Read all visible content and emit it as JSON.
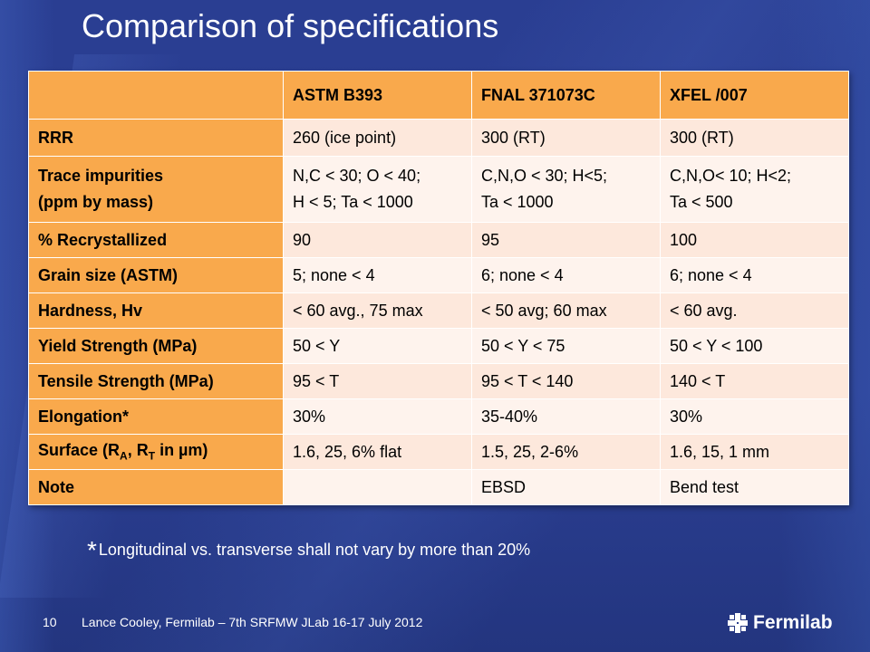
{
  "title": "Comparison of specifications",
  "table": {
    "headers": [
      "",
      "ASTM B393",
      "FNAL 371073C",
      "XFEL /007"
    ],
    "rows": [
      {
        "label": "RRR",
        "cells": [
          "260 (ice point)",
          "300 (RT)",
          "300 (RT)"
        ]
      },
      {
        "label": "Trace impurities\n(ppm by mass)",
        "cells": [
          "N,C < 30; O < 40;\nH < 5; Ta < 1000",
          "C,N,O < 30; H<5;\nTa < 1000",
          "C,N,O< 10; H<2;\nTa < 500"
        ]
      },
      {
        "label": "% Recrystallized",
        "cells": [
          "90",
          "95",
          "100"
        ]
      },
      {
        "label": "Grain size (ASTM)",
        "cells": [
          "5; none < 4",
          "6; none < 4",
          "6; none < 4"
        ]
      },
      {
        "label": "Hardness, Hv",
        "cells": [
          "< 60 avg., 75 max",
          "< 50 avg; 60 max",
          "< 60 avg."
        ]
      },
      {
        "label": "Yield Strength (MPa)",
        "cells": [
          "50 < Y",
          "50 < Y < 75",
          "50 < Y < 100"
        ]
      },
      {
        "label": "Tensile Strength (MPa)",
        "cells": [
          "95 < T",
          "95 < T < 140",
          "140 < T"
        ]
      },
      {
        "label": "Elongation*",
        "cells": [
          "30%",
          "35-40%",
          "30%"
        ]
      },
      {
        "label_parts": {
          "prefix": "Surface (R",
          "sub_a": "A",
          "mid": ", R",
          "sub_t": "T",
          "suffix": " in µm)"
        },
        "cells": [
          "1.6, 25, 6% flat",
          "1.5, 25, 2-6%",
          "1.6, 15, 1 mm"
        ]
      },
      {
        "label": "Note",
        "cells": [
          "",
          "EBSD",
          "Bend test"
        ]
      }
    ]
  },
  "footnote": {
    "star": "*",
    "text": "Longitudinal vs. transverse shall not vary by more than 20%"
  },
  "footer": {
    "page": "10",
    "text": "Lance Cooley, Fermilab – 7th SRFMW JLab 16-17 July 2012",
    "logo": "Fermilab"
  }
}
